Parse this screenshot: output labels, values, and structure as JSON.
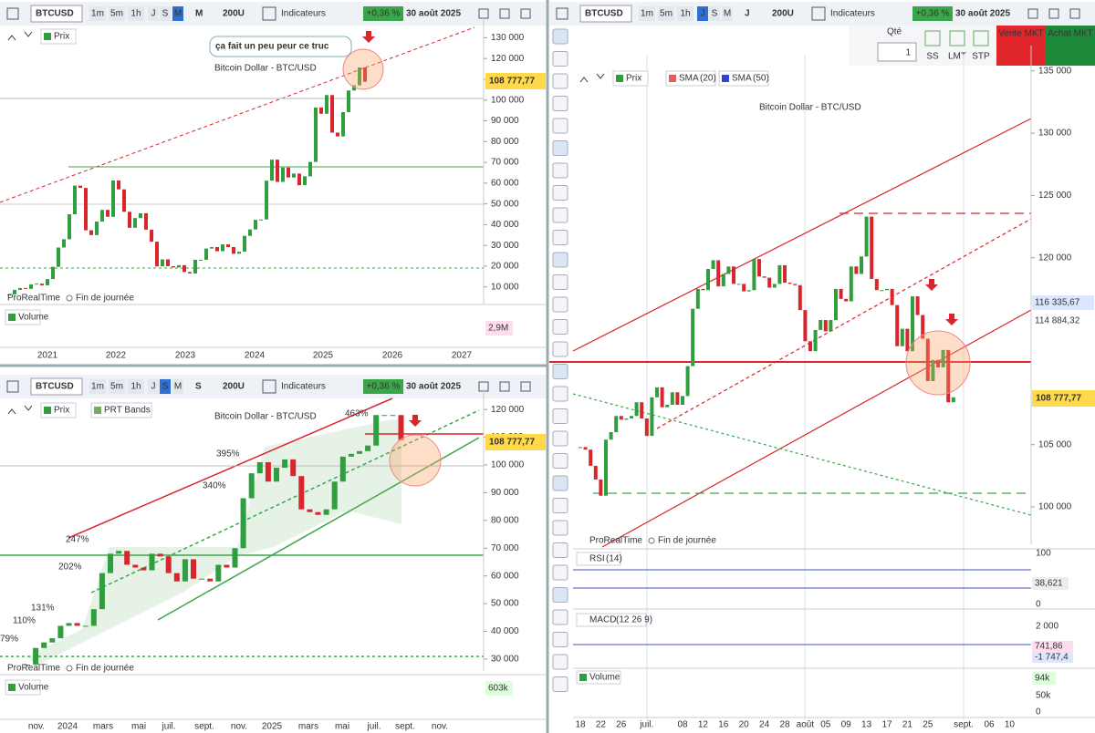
{
  "panels": [
    {
      "toolbar": {
        "symbol": "BTCUSD",
        "buttons": [
          "1m",
          "5m",
          "1h",
          "J",
          "S",
          "M"
        ],
        "selected": 5,
        "period": "M",
        "units": "200U",
        "indicators": "Indicateurs",
        "change": "+0,36 %",
        "date": "30 août 2025"
      },
      "legend": [
        "Prix"
      ],
      "watermark": "Bitcoin Dollar - BTC/USD",
      "annotations": [
        "ça fait un peu peur ce truc"
      ],
      "price_label": "108 777,77",
      "footer": [
        "ProRealTime",
        "Fin de journée"
      ],
      "volume_label": "Volume",
      "volume_last": "2,9M",
      "chart": {
        "type": "candlestick",
        "x_labels": [
          "2021",
          "2022",
          "2023",
          "2024",
          "2025",
          "2026",
          "2027"
        ],
        "values": [
          6400,
          8600,
          9500,
          9100,
          11300,
          11600,
          10800,
          13800,
          19700,
          29000,
          33000,
          45000,
          58800,
          57700,
          37300,
          35000,
          41500,
          47100,
          43800,
          61300,
          57000,
          46200,
          38500,
          43200,
          45500,
          37600,
          31800,
          19900,
          23300,
          20000,
          19400,
          20500,
          17200,
          16500,
          23100,
          23100,
          28500,
          29200,
          27200,
          30500,
          29200,
          26000,
          27000,
          34600,
          37700,
          42300,
          42500,
          61200,
          71300,
          60600,
          67500,
          62700,
          64600,
          59000,
          63300,
          70200,
          96400,
          93400,
          102400,
          84300,
          82500,
          94200,
          104600,
          107100,
          115700,
          108800
        ],
        "ylim": [
          2000,
          135000
        ],
        "yticks": [
          {
            "value": 10000,
            "label": "10 000"
          },
          {
            "value": 20000,
            "label": "20 000"
          },
          {
            "value": 30000,
            "label": "30 000"
          },
          {
            "value": 40000,
            "label": "40 000"
          },
          {
            "value": 50000,
            "label": "50 000"
          },
          {
            "value": 60000,
            "label": "60 000"
          },
          {
            "value": 70000,
            "label": "70 000"
          },
          {
            "value": 80000,
            "label": "80 000"
          },
          {
            "value": 90000,
            "label": "90 000"
          },
          {
            "value": 100000,
            "label": "100 000"
          },
          {
            "value": 110000,
            "label": "110 000"
          },
          {
            "value": 120000,
            "label": "120 000"
          },
          {
            "value": 130000,
            "label": "130 000"
          }
        ]
      }
    },
    {
      "toolbar": {
        "symbol": "BTCUSD",
        "buttons": [
          "1m",
          "5m",
          "1h",
          "J",
          "S",
          "M"
        ],
        "selected": 4,
        "period": "S",
        "units": "200U",
        "indicators": "Indicateurs",
        "change": "+0,36 %",
        "date": "30 août 2025"
      },
      "legend": [
        "Prix",
        "PRT Bands"
      ],
      "watermark": "Bitcoin Dollar - BTC/USD",
      "annotations": [
        "463%",
        "395%",
        "340%",
        "247%",
        "202%",
        "131%",
        "110%",
        "79%"
      ],
      "price_label": "108 777,77",
      "footer": [
        "ProRealTime",
        "Fin de journée"
      ],
      "volume_label": "Volume",
      "volume_last": "603k",
      "chart": {
        "type": "candlestick",
        "x_labels": [
          "nov.",
          "2024",
          "mars",
          "mai",
          "juil.",
          "sept.",
          "nov.",
          "2025",
          "mars",
          "mai",
          "juil.",
          "sept.",
          "nov."
        ],
        "values": [
          28000,
          34000,
          36000,
          37500,
          42000,
          43000,
          42000,
          42000,
          48000,
          61000,
          68000,
          69000,
          64000,
          63000,
          62000,
          68000,
          67000,
          61000,
          58000,
          66000,
          59000,
          59000,
          58000,
          64000,
          63000,
          70000,
          88000,
          97000,
          101000,
          94000,
          99000,
          102000,
          96000,
          84000,
          83000,
          82000,
          84000,
          94000,
          103000,
          104000,
          105000,
          107000,
          118000,
          118000,
          118000,
          109000
        ],
        "ylim": [
          25700,
          124000
        ],
        "yticks": [
          {
            "value": 30000,
            "label": "30 000"
          },
          {
            "value": 40000,
            "label": "40 000"
          },
          {
            "value": 50000,
            "label": "50 000"
          },
          {
            "value": 60000,
            "label": "60 000"
          },
          {
            "value": 70000,
            "label": "70 000"
          },
          {
            "value": 80000,
            "label": "80 000"
          },
          {
            "value": 90000,
            "label": "90 000"
          },
          {
            "value": 100000,
            "label": "100 000"
          },
          {
            "value": 110000,
            "label": "110 000"
          },
          {
            "value": 120000,
            "label": "120 000"
          }
        ]
      }
    },
    {
      "toolbar": {
        "symbol": "BTCUSD",
        "buttons": [
          "1m",
          "5m",
          "1h",
          "J",
          "S",
          "M"
        ],
        "selected": 3,
        "period": "J",
        "units": "200U",
        "indicators": "Indicateurs",
        "change": "+0,36 %",
        "date": "30 août 2025"
      },
      "order": {
        "qty_label": "Qté",
        "qty": "1",
        "types": [
          "SS",
          "LMT",
          "STP"
        ],
        "sell": "Vente MKT",
        "buy": "Achat MKT"
      },
      "legend": [
        "Prix",
        "SMA",
        "SMA"
      ],
      "legend_params": [
        "(20)",
        "(50)"
      ],
      "watermark": "Bitcoin Dollar - BTC/USD",
      "price_label": "108 777,77",
      "badges": [
        "116 335,67",
        "114 884,32"
      ],
      "footer": [
        "ProRealTime",
        "Fin de journée"
      ],
      "rsi": {
        "label": "RSI",
        "params": "(14)",
        "last": "38,621",
        "ticks": [
          "100",
          "0"
        ]
      },
      "macd": {
        "label": "MACD",
        "params": "(12 26 9)",
        "ticks": [
          "2 000"
        ],
        "badges": [
          "741,86",
          "-1 747,4"
        ]
      },
      "volume": {
        "label": "Volume",
        "last": "94k",
        "ticks": [
          "50k",
          "0"
        ]
      },
      "chart": {
        "type": "candlestick",
        "x_labels": [
          "18",
          "22",
          "26",
          "juil.",
          "08",
          "12",
          "16",
          "20",
          "24",
          "28",
          "août",
          "05",
          "09",
          "13",
          "17",
          "21",
          "25",
          "sept.",
          "06",
          "10"
        ],
        "values": [
          104800,
          104600,
          103300,
          102200,
          100900,
          105400,
          106000,
          107300,
          107000,
          107100,
          107300,
          108400,
          107100,
          105700,
          108800,
          109600,
          108000,
          108200,
          109200,
          108200,
          108900,
          111300,
          115900,
          117500,
          117400,
          119100,
          119800,
          117700,
          118700,
          119300,
          117900,
          117900,
          117300,
          117400,
          119900,
          118500,
          118400,
          117600,
          117900,
          119400,
          118000,
          117900,
          117800,
          115800,
          113300,
          112500,
          114200,
          115000,
          114100,
          115000,
          117500,
          116700,
          116500,
          119300,
          118700,
          120100,
          123300,
          118300,
          117400,
          117400,
          117500,
          116200,
          112900,
          114300,
          112500,
          116900,
          115400,
          113500,
          110100,
          111800,
          111200,
          112600,
          108400,
          108800
        ],
        "ylim": [
          97000,
          136300
        ],
        "yticks": [
          {
            "value": 100000,
            "label": "100 000"
          },
          {
            "value": 105000,
            "label": "105 000"
          },
          {
            "value": 120000,
            "label": "120 000"
          },
          {
            "value": 125000,
            "label": "125 000"
          },
          {
            "value": 130000,
            "label": "130 000"
          },
          {
            "value": 135000,
            "label": "135 000"
          }
        ]
      }
    }
  ]
}
